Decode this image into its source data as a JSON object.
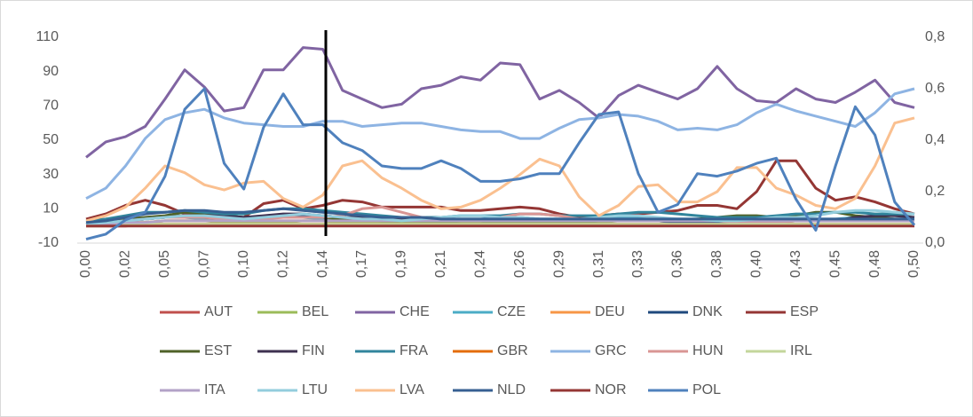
{
  "chart_data": {
    "type": "line",
    "categories": [
      "0,00",
      null,
      "0,02",
      null,
      "0,05",
      null,
      "0,07",
      null,
      "0,10",
      null,
      "0,12",
      null,
      "0,14",
      null,
      "0,17",
      null,
      "0,19",
      null,
      "0,21",
      null,
      "0,24",
      null,
      "0,26",
      null,
      "0,29",
      null,
      "0,31",
      null,
      "0,33",
      null,
      "0,36",
      null,
      "0,38",
      null,
      "0,40",
      null,
      "0,43",
      null,
      "0,45",
      null,
      "0,48",
      null,
      "0,50"
    ],
    "ylim": [
      -10,
      110
    ],
    "yticks": [
      -10,
      10,
      30,
      50,
      70,
      90,
      110
    ],
    "y2lim": [
      0,
      0.8
    ],
    "y2ticks": [
      {
        "value": 0,
        "label": "0,0"
      },
      {
        "value": 0.2,
        "label": "0,2"
      },
      {
        "value": 0.4,
        "label": "0,4"
      },
      {
        "value": 0.6,
        "label": "0,6"
      },
      {
        "value": 0.8,
        "label": "0,8"
      }
    ],
    "grid": false,
    "legend": "bottom",
    "series": [
      {
        "name": "AUT",
        "color": "#c0504d",
        "values": [
          0,
          0,
          0,
          1,
          1,
          1,
          1,
          1,
          1,
          1,
          1,
          1,
          1,
          1,
          1,
          1,
          1,
          1,
          1,
          1,
          1,
          1,
          1,
          1,
          1,
          1,
          1,
          1,
          1,
          1,
          1,
          1,
          1,
          1,
          1,
          1,
          1,
          1,
          1,
          1,
          1,
          1,
          1
        ]
      },
      {
        "name": "BEL",
        "color": "#9bbb59",
        "values": [
          1,
          1,
          2,
          2,
          3,
          3,
          3,
          2,
          2,
          2,
          2,
          3,
          3,
          2,
          2,
          2,
          2,
          2,
          2,
          2,
          2,
          2,
          2,
          2,
          2,
          2,
          2,
          3,
          3,
          3,
          2,
          2,
          2,
          2,
          2,
          2,
          3,
          3,
          3,
          3,
          3,
          3,
          3
        ]
      },
      {
        "name": "CHE",
        "color": "#8064a2",
        "values": [
          40,
          49,
          52,
          58,
          74,
          91,
          81,
          67,
          69,
          91,
          91,
          104,
          103,
          79,
          74,
          69,
          71,
          80,
          82,
          87,
          85,
          95,
          94,
          74,
          79,
          72,
          63,
          76,
          82,
          78,
          74,
          80,
          93,
          80,
          73,
          72,
          80,
          74,
          72,
          78,
          85,
          72,
          69
        ]
      },
      {
        "name": "CZE",
        "color": "#4bacc6",
        "values": [
          2,
          2,
          3,
          4,
          5,
          5,
          4,
          4,
          4,
          5,
          5,
          5,
          4,
          4,
          4,
          4,
          3,
          3,
          4,
          4,
          4,
          5,
          5,
          4,
          4,
          4,
          4,
          5,
          5,
          4,
          4,
          4,
          3,
          3,
          3,
          3,
          4,
          4,
          4,
          5,
          5,
          4,
          4
        ]
      },
      {
        "name": "DEU",
        "color": "#f79646",
        "values": [
          1,
          1,
          2,
          2,
          3,
          3,
          3,
          3,
          3,
          3,
          3,
          3,
          3,
          3,
          3,
          3,
          3,
          3,
          3,
          3,
          3,
          3,
          3,
          3,
          3,
          3,
          3,
          3,
          3,
          3,
          3,
          3,
          3,
          3,
          3,
          3,
          3,
          3,
          3,
          3,
          3,
          3,
          3
        ]
      },
      {
        "name": "DNK",
        "color": "#1f497d",
        "values": [
          1,
          2,
          3,
          4,
          5,
          6,
          6,
          6,
          5,
          5,
          5,
          6,
          6,
          5,
          5,
          5,
          4,
          4,
          3,
          3,
          3,
          3,
          3,
          3,
          3,
          3,
          3,
          3,
          3,
          3,
          2,
          2,
          2,
          2,
          2,
          3,
          3,
          3,
          3,
          3,
          3,
          3,
          3
        ]
      },
      {
        "name": "ESP",
        "color": "#943634",
        "values": [
          4,
          7,
          12,
          15,
          12,
          7,
          5,
          4,
          5,
          13,
          15,
          10,
          12,
          15,
          14,
          11,
          11,
          11,
          11,
          9,
          9,
          10,
          11,
          10,
          7,
          5,
          6,
          7,
          7,
          8,
          9,
          12,
          12,
          10,
          20,
          38,
          38,
          22,
          15,
          17,
          14,
          10,
          7
        ]
      },
      {
        "name": "EST",
        "color": "#4f6228",
        "values": [
          2,
          3,
          4,
          5,
          6,
          8,
          7,
          6,
          5,
          5,
          5,
          5,
          5,
          4,
          4,
          3,
          3,
          3,
          3,
          3,
          3,
          3,
          3,
          3,
          3,
          3,
          3,
          3,
          3,
          3,
          3,
          4,
          5,
          6,
          6,
          5,
          6,
          8,
          8,
          6,
          5,
          4,
          4
        ]
      },
      {
        "name": "FIN",
        "color": "#3f3151",
        "values": [
          1,
          2,
          3,
          4,
          5,
          6,
          6,
          6,
          5,
          6,
          7,
          7,
          6,
          5,
          5,
          4,
          4,
          3,
          3,
          3,
          3,
          3,
          3,
          3,
          3,
          3,
          3,
          3,
          3,
          3,
          3,
          3,
          3,
          3,
          3,
          3,
          3,
          3,
          3,
          5,
          6,
          6,
          5
        ]
      },
      {
        "name": "FRA",
        "color": "#31859c",
        "values": [
          3,
          4,
          6,
          8,
          8,
          9,
          8,
          7,
          7,
          9,
          10,
          10,
          9,
          8,
          7,
          6,
          5,
          5,
          5,
          6,
          6,
          6,
          7,
          7,
          6,
          6,
          6,
          7,
          8,
          8,
          7,
          6,
          5,
          5,
          5,
          6,
          7,
          7,
          8,
          8,
          7,
          7,
          7
        ]
      },
      {
        "name": "GBR",
        "color": "#e46c0a",
        "values": [
          1,
          1,
          1,
          1,
          1,
          1,
          1,
          1,
          1,
          1,
          1,
          1,
          1,
          1,
          1,
          1,
          1,
          1,
          1,
          1,
          1,
          1,
          1,
          1,
          1,
          1,
          1,
          1,
          1,
          1,
          1,
          1,
          1,
          1,
          1,
          1,
          1,
          1,
          1,
          1,
          1,
          1,
          1
        ]
      },
      {
        "name": "GRC",
        "color": "#8eb4e3",
        "values": [
          16,
          22,
          35,
          51,
          62,
          66,
          68,
          63,
          60,
          59,
          58,
          58,
          61,
          61,
          58,
          59,
          60,
          60,
          58,
          56,
          55,
          55,
          51,
          51,
          57,
          62,
          63,
          65,
          64,
          61,
          56,
          57,
          56,
          59,
          66,
          71,
          67,
          64,
          61,
          58,
          66,
          77,
          80
        ]
      },
      {
        "name": "HUN",
        "color": "#d99694",
        "values": [
          2,
          2,
          3,
          4,
          5,
          5,
          5,
          4,
          4,
          4,
          5,
          5,
          5,
          6,
          10,
          11,
          8,
          5,
          4,
          3,
          3,
          5,
          7,
          7,
          6,
          4,
          3,
          3,
          3,
          3,
          3,
          3,
          3,
          2,
          2,
          2,
          3,
          3,
          3,
          3,
          3,
          3,
          3
        ]
      },
      {
        "name": "IRL",
        "color": "#c3d69b",
        "values": [
          0,
          0,
          1,
          1,
          1,
          1,
          1,
          1,
          1,
          1,
          1,
          1,
          1,
          1,
          1,
          1,
          1,
          1,
          1,
          1,
          1,
          1,
          1,
          1,
          1,
          1,
          1,
          1,
          1,
          1,
          1,
          1,
          1,
          1,
          1,
          1,
          1,
          1,
          1,
          1,
          1,
          1,
          1
        ]
      },
      {
        "name": "ITA",
        "color": "#b3a2c7",
        "values": [
          1,
          1,
          2,
          2,
          3,
          3,
          3,
          3,
          3,
          3,
          3,
          3,
          3,
          3,
          3,
          3,
          3,
          3,
          3,
          3,
          3,
          3,
          3,
          3,
          3,
          3,
          3,
          3,
          3,
          3,
          3,
          3,
          3,
          3,
          3,
          3,
          3,
          3,
          3,
          3,
          3,
          3,
          3
        ]
      },
      {
        "name": "LTU",
        "color": "#93cddd",
        "values": [
          1,
          2,
          3,
          4,
          5,
          6,
          6,
          5,
          4,
          5,
          6,
          7,
          6,
          5,
          4,
          4,
          3,
          4,
          5,
          6,
          6,
          5,
          5,
          4,
          4,
          4,
          5,
          6,
          6,
          5,
          4,
          4,
          3,
          3,
          4,
          5,
          5,
          6,
          8,
          9,
          9,
          8,
          7
        ]
      },
      {
        "name": "LVA",
        "color": "#fac090",
        "values": [
          3,
          6,
          11,
          22,
          35,
          31,
          24,
          21,
          25,
          26,
          16,
          11,
          18,
          35,
          38,
          28,
          22,
          15,
          10,
          11,
          15,
          22,
          30,
          39,
          35,
          17,
          6,
          12,
          23,
          24,
          14,
          14,
          20,
          34,
          34,
          22,
          18,
          12,
          10,
          16,
          35,
          60,
          63
        ]
      },
      {
        "name": "NLD",
        "color": "#376092",
        "values": [
          2,
          3,
          5,
          7,
          8,
          9,
          9,
          8,
          8,
          9,
          10,
          9,
          8,
          7,
          6,
          5,
          5,
          5,
          4,
          4,
          4,
          4,
          4,
          4,
          4,
          4,
          4,
          4,
          4,
          4,
          4,
          4,
          4,
          4,
          4,
          4,
          4,
          4,
          4,
          4,
          4,
          4,
          4
        ]
      },
      {
        "name": "NOR",
        "color": "#953735",
        "values": [
          0,
          0,
          0,
          0,
          0,
          0,
          0,
          0,
          0,
          0,
          0,
          0,
          0,
          0,
          0,
          0,
          0,
          0,
          0,
          0,
          0,
          0,
          0,
          0,
          0,
          0,
          0,
          0,
          0,
          0,
          0,
          0,
          0,
          0,
          0,
          0,
          0,
          0,
          0,
          0,
          0,
          0,
          0
        ]
      },
      {
        "name": "POL",
        "color": "#4f81bd",
        "axis": "y2",
        "values": [
          0.015,
          0.035,
          0.09,
          0.12,
          0.26,
          0.52,
          0.6,
          0.31,
          0.21,
          0.45,
          0.58,
          0.46,
          0.46,
          0.39,
          0.36,
          0.3,
          0.29,
          0.29,
          0.32,
          0.29,
          0.24,
          0.24,
          0.25,
          0.27,
          0.27,
          0.39,
          0.5,
          0.51,
          0.27,
          0.12,
          0.15,
          0.27,
          0.26,
          0.28,
          0.31,
          0.33,
          0.17,
          0.05,
          0.3,
          0.53,
          0.42,
          0.16,
          0.07
        ]
      }
    ]
  }
}
